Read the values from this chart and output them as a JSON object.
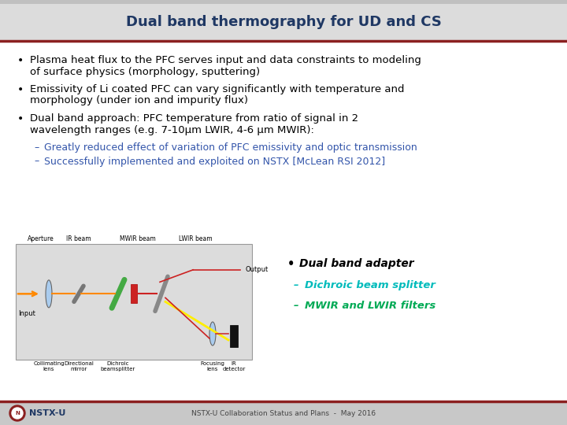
{
  "title": "Dual band thermography for UD and CS",
  "title_color": "#1F3864",
  "title_fontsize": 13,
  "bg_color": "#FFFFFF",
  "header_bg_top": "#C8C8C8",
  "header_bg_bot": "#E8E8E8",
  "header_line_color": "#8B2020",
  "bullet_color": "#000000",
  "bullet_fontsize": 9.5,
  "sub_bullet_color": "#3355AA",
  "footer_bg": "#C8C8C8",
  "footer_line_color": "#8B2020",
  "footer_text": "NSTX-U Collaboration Status and Plans  -  May 2016",
  "footer_left": "NSTX-U",
  "footer_logo_color": "#8B2020",
  "bullets": [
    "Plasma heat flux to the PFC serves input and data constraints to modeling\nof surface physics (morphology, sputtering)",
    "Emissivity of Li coated PFC can vary significantly with temperature and\nmorphology (under ion and impurity flux)",
    "Dual band approach: PFC temperature from ratio of signal in 2\nwavelength ranges (e.g. 7-10μm LWIR, 4-6 μm MWIR):"
  ],
  "sub_bullets": [
    "Greatly reduced effect of variation of PFC emissivity and optic transmission",
    "Successfully implemented and exploited on NSTX [McLean RSI 2012]"
  ],
  "right_bullet": "Dual band adapter",
  "right_sub_bullets": [
    "Dichroic beam splitter",
    "MWIR and LWIR filters"
  ],
  "right_italic_color": "#00BBBB",
  "right_sub2_color": "#00AA55"
}
